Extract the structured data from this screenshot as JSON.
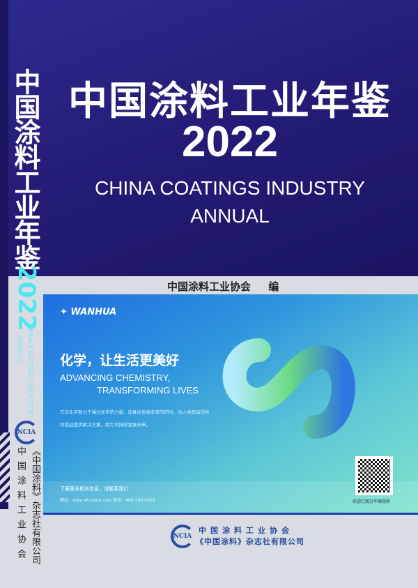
{
  "cover": {
    "title_cn": "中国涂料工业年鉴",
    "year": "2022",
    "title_en_line1": "CHINA COATINGS INDUSTRY",
    "title_en_line2": "ANNUAL",
    "editor": "中国涂料工业协会 编"
  },
  "spine": {
    "title_cn": "中国涂料工业年鉴",
    "year": "2022",
    "title_en_line1": "CHINA COATINGS INDUSTRY",
    "title_en_line2": "ANNUAL",
    "logo": "NCIA",
    "publisher1": "中国涂料工业协会",
    "publisher2": "《中国涂料》杂志社有限公司"
  },
  "ad": {
    "brand": "WANHUA",
    "slogan_cn": "化学，让生活更美好",
    "slogan_en_line1": "ADVANCING CHEMISTRY,",
    "slogan_en_line2": "TRANSFORMING LIVES",
    "body": "万华化学致力于通过化学的力量，在推动自身变革的同时，为人类面临的共同挑战提供解决方案，助力可持续发展未来。",
    "contact": "了解更多相关信息，请联系我们",
    "web": "网址：www.whchem.com   电话：400-160-0309",
    "qr_caption": "欢迎订阅万华微视界"
  },
  "footer": {
    "logo": "NCIA",
    "publisher1": "中国涂料工业协会",
    "publisher2": "《中国涂料》杂志社有限公司"
  },
  "colors": {
    "cover_top": "#241d78",
    "accent_cyan": "#4ee6f0",
    "publisher_blue": "#2b4fa0"
  }
}
